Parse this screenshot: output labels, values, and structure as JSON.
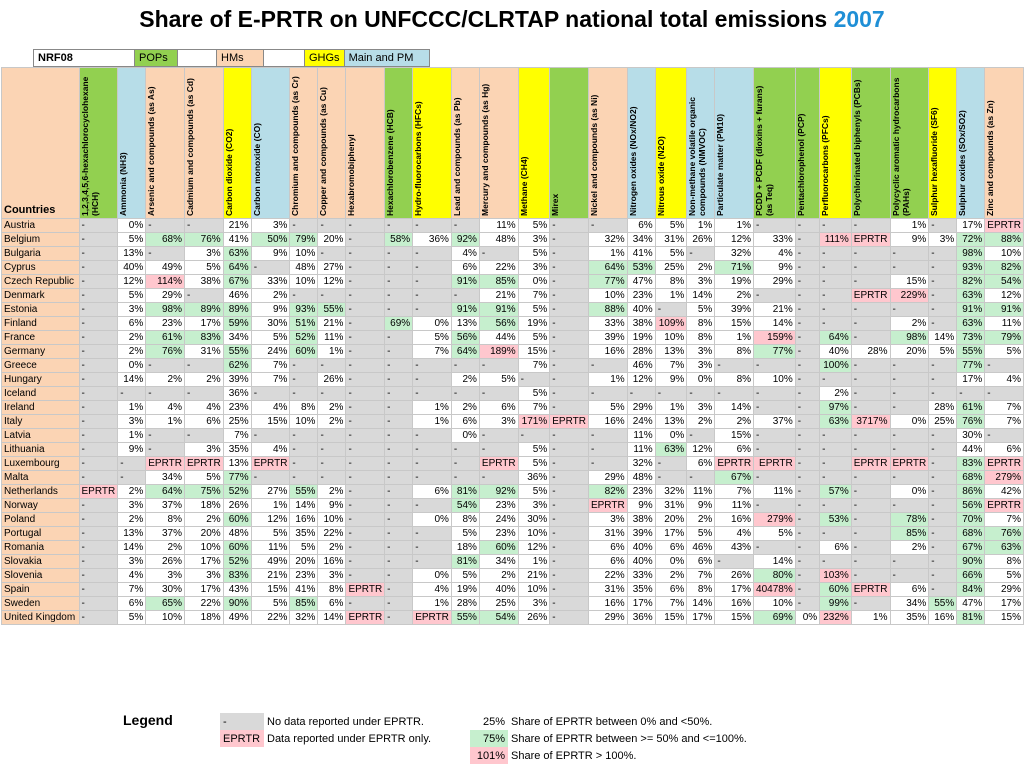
{
  "title": {
    "main": "Share of E-PRTR on UNFCCC/CLRTAP national total emissions ",
    "year": "2007"
  },
  "categories": {
    "nrf": "NRF08",
    "pops": "POPs",
    "hms": "HMs",
    "ghgs": "GHGs",
    "main": "Main and PM"
  },
  "colors": {
    "pops": "#92d050",
    "hms": "#fbd4b4",
    "ghgs": "#ffff00",
    "main": "#b7dde8",
    "gray": "#d9d9d9",
    "green": "#c6efce",
    "pink": "#ffc7ce",
    "year": "#1f8fd6"
  },
  "countries_label": "Countries",
  "columns": [
    {
      "label": "1,2,3,4,5,6-hexachlorocyclohexane (HCH)",
      "cat": "pop"
    },
    {
      "label": "Ammonia (NH3)",
      "cat": "main"
    },
    {
      "label": "Arsenic and compounds (as As)",
      "cat": "hm"
    },
    {
      "label": "Cadmium and compounds (as Cd)",
      "cat": "hm"
    },
    {
      "label": "Carbon dioxide (CO2)",
      "cat": "ghg"
    },
    {
      "label": "Carbon monoxide (CO)",
      "cat": "main"
    },
    {
      "label": "Chromium and compounds (as Cr)",
      "cat": "hm"
    },
    {
      "label": "Copper and compounds (as Cu)",
      "cat": "hm"
    },
    {
      "label": "Hexabromobiphenyl",
      "cat": "hm"
    },
    {
      "label": "Hexachlorobenzene (HCB)",
      "cat": "pop"
    },
    {
      "label": "Hydro-fluorocarbons (HFCs)",
      "cat": "ghg"
    },
    {
      "label": "Lead and compounds (as Pb)",
      "cat": "hm"
    },
    {
      "label": "Mercury and compounds (as Hg)",
      "cat": "hm"
    },
    {
      "label": "Methane (CH4)",
      "cat": "ghg"
    },
    {
      "label": "Mirex",
      "cat": "pop"
    },
    {
      "label": "Nickel and compounds (as Ni)",
      "cat": "hm"
    },
    {
      "label": "Nitrogen oxides (NOx/NO2)",
      "cat": "main"
    },
    {
      "label": "Nitrous oxide (N2O)",
      "cat": "ghg"
    },
    {
      "label": "Non-methane volatile organic compounds (NMVOC)",
      "cat": "main"
    },
    {
      "label": "Particulate matter (PM10)",
      "cat": "main"
    },
    {
      "label": "PCDD + PCDF (dioxins + furans) (as Teq)",
      "cat": "pop"
    },
    {
      "label": "Pentachlorophenol (PCP)",
      "cat": "pop"
    },
    {
      "label": "Perfluorocarbons (PFCs)",
      "cat": "ghg"
    },
    {
      "label": "Polychlorinated biphenyls (PCBs)",
      "cat": "pop"
    },
    {
      "label": "Polycyclic aromatic hydrocarbons (PAHs)",
      "cat": "pop"
    },
    {
      "label": "Sulphur hexafluoride (SF6)",
      "cat": "ghg"
    },
    {
      "label": "Sulphur oxides (SOx/SO2)",
      "cat": "main"
    },
    {
      "label": "Zinc and compounds (as Zn)",
      "cat": "hm"
    }
  ],
  "rows": [
    {
      "country": "Austria",
      "values": [
        "-",
        "0%",
        "-",
        "-",
        "21%",
        "3%",
        "-",
        "-",
        "-",
        "-",
        "-",
        "-",
        "11%",
        "5%",
        "-",
        "-",
        "6%",
        "5%",
        "1%",
        "1%",
        "-",
        "-",
        "-",
        "-",
        "1%",
        "-",
        "17%",
        "EPRTR"
      ]
    },
    {
      "country": "Belgium",
      "values": [
        "-",
        "5%",
        "68%",
        "76%",
        "41%",
        "50%",
        "79%",
        "20%",
        "-",
        "58%",
        "36%",
        "92%",
        "48%",
        "3%",
        "-",
        "32%",
        "34%",
        "31%",
        "26%",
        "12%",
        "33%",
        "-",
        "111%",
        "EPRTR",
        "9%",
        "3%",
        "72%",
        "88%"
      ]
    },
    {
      "country": "Bulgaria",
      "values": [
        "-",
        "13%",
        "-",
        "3%",
        "63%",
        "9%",
        "10%",
        "-",
        "-",
        "-",
        "-",
        "4%",
        "-",
        "5%",
        "-",
        "1%",
        "41%",
        "5%",
        "-",
        "32%",
        "4%",
        "-",
        "-",
        "-",
        "-",
        "-",
        "98%",
        "10%"
      ]
    },
    {
      "country": "Cyprus",
      "values": [
        "-",
        "40%",
        "49%",
        "5%",
        "64%",
        "-",
        "48%",
        "27%",
        "-",
        "-",
        "-",
        "6%",
        "22%",
        "3%",
        "-",
        "64%",
        "53%",
        "25%",
        "2%",
        "71%",
        "9%",
        "-",
        "-",
        "-",
        "-",
        "-",
        "93%",
        "82%"
      ]
    },
    {
      "country": "Czech Republic",
      "values": [
        "-",
        "12%",
        "114%",
        "38%",
        "67%",
        "33%",
        "10%",
        "12%",
        "-",
        "-",
        "-",
        "91%",
        "85%",
        "0%",
        "-",
        "77%",
        "47%",
        "8%",
        "3%",
        "19%",
        "29%",
        "-",
        "-",
        "-",
        "15%",
        "-",
        "82%",
        "54%"
      ]
    },
    {
      "country": "Denmark",
      "values": [
        "-",
        "5%",
        "29%",
        "-",
        "46%",
        "2%",
        "-",
        "-",
        "-",
        "-",
        "-",
        "-",
        "21%",
        "7%",
        "-",
        "10%",
        "23%",
        "1%",
        "14%",
        "2%",
        "-",
        "-",
        "-",
        "EPRTR",
        "229%",
        "-",
        "63%",
        "12%"
      ]
    },
    {
      "country": "Estonia",
      "values": [
        "-",
        "3%",
        "98%",
        "89%",
        "89%",
        "9%",
        "93%",
        "55%",
        "-",
        "-",
        "-",
        "91%",
        "91%",
        "5%",
        "-",
        "88%",
        "40%",
        "-",
        "5%",
        "39%",
        "21%",
        "-",
        "-",
        "-",
        "-",
        "-",
        "91%",
        "91%"
      ]
    },
    {
      "country": "Finland",
      "values": [
        "-",
        "6%",
        "23%",
        "17%",
        "59%",
        "30%",
        "51%",
        "21%",
        "-",
        "69%",
        "0%",
        "13%",
        "56%",
        "19%",
        "-",
        "33%",
        "38%",
        "109%",
        "8%",
        "15%",
        "14%",
        "-",
        "-",
        "-",
        "2%",
        "-",
        "63%",
        "11%"
      ]
    },
    {
      "country": "France",
      "values": [
        "-",
        "2%",
        "61%",
        "83%",
        "34%",
        "5%",
        "52%",
        "11%",
        "-",
        "-",
        "5%",
        "56%",
        "44%",
        "5%",
        "-",
        "39%",
        "19%",
        "10%",
        "8%",
        "1%",
        "159%",
        "-",
        "64%",
        "-",
        "98%",
        "14%",
        "73%",
        "79%"
      ]
    },
    {
      "country": "Germany",
      "values": [
        "-",
        "2%",
        "76%",
        "31%",
        "55%",
        "24%",
        "60%",
        "1%",
        "-",
        "-",
        "7%",
        "64%",
        "189%",
        "15%",
        "-",
        "16%",
        "28%",
        "13%",
        "3%",
        "8%",
        "77%",
        "-",
        "40%",
        "28%",
        "20%",
        "5%",
        "55%",
        "5%"
      ]
    },
    {
      "country": "Greece",
      "values": [
        "-",
        "0%",
        "-",
        "-",
        "62%",
        "7%",
        "-",
        "-",
        "-",
        "-",
        "-",
        "-",
        "-",
        "7%",
        "-",
        "-",
        "46%",
        "7%",
        "3%",
        "-",
        "-",
        "-",
        "100%",
        "-",
        "-",
        "-",
        "77%",
        "-"
      ]
    },
    {
      "country": "Hungary",
      "values": [
        "-",
        "14%",
        "2%",
        "2%",
        "39%",
        "7%",
        "-",
        "26%",
        "-",
        "-",
        "-",
        "2%",
        "5%",
        "-",
        "-",
        "1%",
        "12%",
        "9%",
        "0%",
        "8%",
        "10%",
        "-",
        "-",
        "-",
        "-",
        "-",
        "17%",
        "4%"
      ]
    },
    {
      "country": "Iceland",
      "values": [
        "-",
        "-",
        "-",
        "-",
        "36%",
        "-",
        "-",
        "-",
        "-",
        "-",
        "-",
        "-",
        "-",
        "5%",
        "-",
        "-",
        "-",
        "-",
        "-",
        "-",
        "-",
        "-",
        "2%",
        "-",
        "-",
        "-",
        "-",
        "-"
      ]
    },
    {
      "country": "Ireland",
      "values": [
        "-",
        "1%",
        "4%",
        "4%",
        "23%",
        "4%",
        "8%",
        "2%",
        "-",
        "-",
        "1%",
        "2%",
        "6%",
        "7%",
        "-",
        "5%",
        "29%",
        "1%",
        "3%",
        "14%",
        "-",
        "-",
        "97%",
        "-",
        "-",
        "28%",
        "61%",
        "7%"
      ]
    },
    {
      "country": "Italy",
      "values": [
        "-",
        "3%",
        "1%",
        "6%",
        "25%",
        "15%",
        "10%",
        "2%",
        "-",
        "-",
        "1%",
        "6%",
        "3%",
        "171%",
        "EPRTR",
        "16%",
        "24%",
        "13%",
        "2%",
        "2%",
        "37%",
        "-",
        "63%",
        "3717%",
        "0%",
        "25%",
        "76%",
        "7%"
      ]
    },
    {
      "country": "Latvia",
      "values": [
        "-",
        "1%",
        "-",
        "-",
        "7%",
        "-",
        "-",
        "-",
        "-",
        "-",
        "-",
        "0%",
        "-",
        "-",
        "-",
        "-",
        "11%",
        "0%",
        "-",
        "15%",
        "-",
        "-",
        "-",
        "-",
        "-",
        "-",
        "30%",
        "-"
      ]
    },
    {
      "country": "Lithuania",
      "values": [
        "-",
        "9%",
        "-",
        "3%",
        "35%",
        "4%",
        "-",
        "-",
        "-",
        "-",
        "-",
        "-",
        "-",
        "5%",
        "-",
        "-",
        "11%",
        "63%",
        "12%",
        "6%",
        "-",
        "-",
        "-",
        "-",
        "-",
        "-",
        "44%",
        "6%"
      ]
    },
    {
      "country": "Luxembourg",
      "values": [
        "-",
        "-",
        "EPRTR",
        "EPRTR",
        "13%",
        "EPRTR",
        "-",
        "-",
        "-",
        "-",
        "-",
        "-",
        "EPRTR",
        "5%",
        "-",
        "-",
        "32%",
        "-",
        "6%",
        "EPRTR",
        "EPRTR",
        "-",
        "-",
        "EPRTR",
        "EPRTR",
        "-",
        "83%",
        "EPRTR"
      ]
    },
    {
      "country": "Malta",
      "values": [
        "-",
        "-",
        "34%",
        "5%",
        "77%",
        "-",
        "-",
        "-",
        "-",
        "-",
        "-",
        "-",
        "-",
        "36%",
        "-",
        "29%",
        "48%",
        "-",
        "-",
        "67%",
        "-",
        "-",
        "-",
        "-",
        "-",
        "-",
        "68%",
        "279%"
      ]
    },
    {
      "country": "Netherlands",
      "values": [
        "EPRTR",
        "2%",
        "64%",
        "75%",
        "52%",
        "27%",
        "55%",
        "2%",
        "-",
        "-",
        "6%",
        "81%",
        "92%",
        "5%",
        "-",
        "82%",
        "23%",
        "32%",
        "11%",
        "7%",
        "11%",
        "-",
        "57%",
        "-",
        "0%",
        "-",
        "86%",
        "42%"
      ]
    },
    {
      "country": "Norway",
      "values": [
        "-",
        "3%",
        "37%",
        "18%",
        "26%",
        "1%",
        "14%",
        "9%",
        "-",
        "-",
        "-",
        "54%",
        "23%",
        "3%",
        "-",
        "EPRTR",
        "9%",
        "31%",
        "9%",
        "11%",
        "-",
        "-",
        "-",
        "-",
        "-",
        "-",
        "56%",
        "EPRTR"
      ]
    },
    {
      "country": "Poland",
      "values": [
        "-",
        "2%",
        "8%",
        "2%",
        "60%",
        "12%",
        "16%",
        "10%",
        "-",
        "-",
        "0%",
        "8%",
        "24%",
        "30%",
        "-",
        "3%",
        "38%",
        "20%",
        "2%",
        "16%",
        "279%",
        "-",
        "53%",
        "-",
        "78%",
        "-",
        "70%",
        "7%"
      ]
    },
    {
      "country": "Portugal",
      "values": [
        "-",
        "13%",
        "37%",
        "20%",
        "48%",
        "5%",
        "35%",
        "22%",
        "-",
        "-",
        "-",
        "5%",
        "23%",
        "10%",
        "-",
        "31%",
        "39%",
        "17%",
        "5%",
        "4%",
        "5%",
        "-",
        "-",
        "-",
        "85%",
        "-",
        "68%",
        "76%"
      ]
    },
    {
      "country": "Romania",
      "values": [
        "-",
        "14%",
        "2%",
        "10%",
        "60%",
        "11%",
        "5%",
        "2%",
        "-",
        "-",
        "-",
        "18%",
        "60%",
        "12%",
        "-",
        "6%",
        "40%",
        "6%",
        "46%",
        "43%",
        "-",
        "-",
        "6%",
        "-",
        "2%",
        "-",
        "67%",
        "63%"
      ]
    },
    {
      "country": "Slovakia",
      "values": [
        "-",
        "3%",
        "26%",
        "17%",
        "52%",
        "49%",
        "20%",
        "16%",
        "-",
        "-",
        "-",
        "81%",
        "34%",
        "1%",
        "-",
        "6%",
        "40%",
        "0%",
        "6%",
        "-",
        "14%",
        "-",
        "-",
        "-",
        "-",
        "-",
        "90%",
        "8%"
      ]
    },
    {
      "country": "Slovenia",
      "values": [
        "-",
        "4%",
        "3%",
        "3%",
        "83%",
        "21%",
        "23%",
        "3%",
        "-",
        "-",
        "0%",
        "5%",
        "2%",
        "21%",
        "-",
        "22%",
        "33%",
        "2%",
        "7%",
        "26%",
        "80%",
        "-",
        "103%",
        "-",
        "-",
        "-",
        "66%",
        "5%"
      ]
    },
    {
      "country": "Spain",
      "values": [
        "-",
        "7%",
        "30%",
        "17%",
        "43%",
        "15%",
        "41%",
        "8%",
        "EPRTR",
        "-",
        "4%",
        "19%",
        "40%",
        "10%",
        "-",
        "31%",
        "35%",
        "6%",
        "8%",
        "17%",
        "40478%",
        "-",
        "60%",
        "EPRTR",
        "6%",
        "-",
        "84%",
        "29%"
      ]
    },
    {
      "country": "Sweden",
      "values": [
        "-",
        "6%",
        "65%",
        "22%",
        "90%",
        "5%",
        "85%",
        "6%",
        "-",
        "-",
        "1%",
        "28%",
        "25%",
        "3%",
        "-",
        "16%",
        "17%",
        "7%",
        "14%",
        "16%",
        "10%",
        "-",
        "99%",
        "-",
        "34%",
        "55%",
        "47%",
        "17%"
      ]
    },
    {
      "country": "United Kingdom",
      "values": [
        "-",
        "5%",
        "10%",
        "18%",
        "49%",
        "22%",
        "32%",
        "14%",
        "EPRTR",
        "-",
        "EPRTR",
        "55%",
        "54%",
        "26%",
        "-",
        "29%",
        "36%",
        "15%",
        "17%",
        "15%",
        "69%",
        "0%",
        "232%",
        "1%",
        "35%",
        "16%",
        "81%",
        "15%"
      ]
    }
  ],
  "legend": {
    "title": "Legend",
    "items": [
      {
        "swatch": "-",
        "swatch_class": "gray",
        "text": "No data reported under EPRTR.",
        "pct": "25%",
        "pct_class": "",
        "pct_text": "Share of EPRTR between 0% and <50%."
      },
      {
        "swatch": "EPRTR",
        "swatch_class": "pink",
        "text": "Data reported under EPRTR only.",
        "pct": "75%",
        "pct_class": "green",
        "pct_text": "Share of EPRTR between >= 50% and <=100%."
      },
      {
        "swatch": "",
        "swatch_class": "",
        "text": "",
        "pct": "101%",
        "pct_class": "pink",
        "pct_text": "Share of EPRTR > 100%."
      }
    ]
  }
}
